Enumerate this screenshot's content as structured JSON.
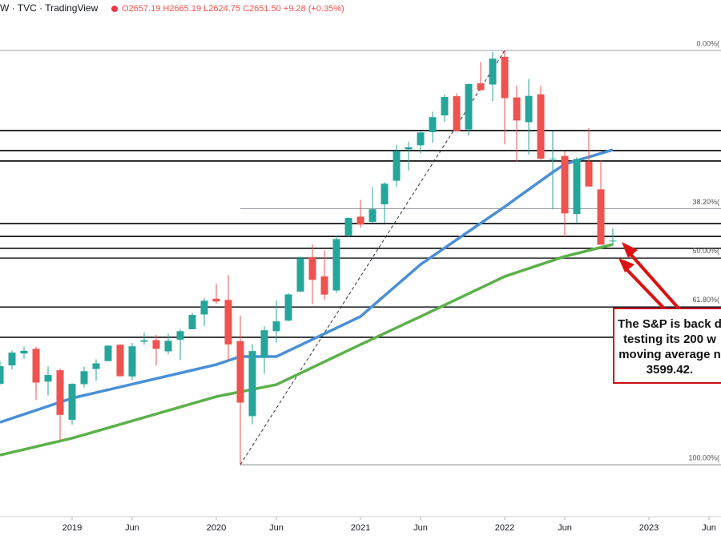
{
  "chart_data": {
    "type": "candlestick",
    "header": {
      "symbol": "W · TVC · TradingView",
      "ohlc": "O2657.19 H2665.19 L2624.75 C2651.50 +9.28 (+0.35%)"
    },
    "x": [
      "2018-07",
      "2018-08",
      "2018-09",
      "2018-10",
      "2018-11",
      "2018-12",
      "2019-01",
      "2019-02",
      "2019-03",
      "2019-04",
      "2019-05",
      "2019-06",
      "2019-07",
      "2019-08",
      "2019-09",
      "2019-10",
      "2019-11",
      "2019-12",
      "2020-01",
      "2020-02",
      "2020-03",
      "2020-04",
      "2020-05",
      "2020-06",
      "2020-07",
      "2020-08",
      "2020-09",
      "2020-10",
      "2020-11",
      "2020-12",
      "2021-01",
      "2021-02",
      "2021-03",
      "2021-04",
      "2021-05",
      "2021-06",
      "2021-07",
      "2021-08",
      "2021-09",
      "2021-10",
      "2021-11",
      "2021-12",
      "2022-01",
      "2022-02",
      "2022-03",
      "2022-04",
      "2022-05",
      "2022-06",
      "2022-07",
      "2022-08",
      "2022-09",
      "2022-10"
    ],
    "open": [
      2704,
      2821,
      2896,
      2926,
      2718,
      2790,
      2476,
      2702,
      2798,
      2848,
      2952,
      2751,
      2971,
      2981,
      2910,
      2984,
      3050,
      3144,
      3244,
      3236,
      2975,
      2499,
      2869,
      3038,
      3105,
      3289,
      3508,
      3385,
      3296,
      3645,
      3764,
      3731,
      3842,
      3992,
      4191,
      4217,
      4300,
      4406,
      4528,
      4317,
      4610,
      4602,
      4778,
      4520,
      4363,
      4540,
      4130,
      4149,
      3781,
      4113,
      3937,
      3609
    ],
    "high": [
      2848,
      2916,
      2941,
      2940,
      2815,
      2800,
      2708,
      2813,
      2860,
      2949,
      2954,
      2964,
      3028,
      3014,
      3022,
      3050,
      3154,
      3248,
      3338,
      3394,
      3137,
      2955,
      3068,
      3233,
      3280,
      3514,
      3588,
      3550,
      3646,
      3760,
      3871,
      3951,
      3983,
      4218,
      4238,
      4302,
      4430,
      4538,
      4546,
      4608,
      4744,
      4808,
      4819,
      4595,
      4637,
      4593,
      4308,
      4178,
      4140,
      4325,
      4119,
      3690
    ],
    "low": [
      2698,
      2796,
      2864,
      2603,
      2631,
      2347,
      2444,
      2681,
      2723,
      2848,
      2751,
      2729,
      2952,
      2822,
      2891,
      2855,
      3050,
      3070,
      3214,
      2855,
      2192,
      2448,
      2767,
      2966,
      3101,
      3285,
      3209,
      3234,
      3279,
      3633,
      3694,
      3725,
      3723,
      3955,
      4057,
      4165,
      4233,
      4367,
      4306,
      4279,
      4560,
      4495,
      4223,
      4115,
      4157,
      4124,
      3811,
      3637,
      3721,
      3955,
      3585,
      3584
    ],
    "close": [
      2816,
      2902,
      2914,
      2712,
      2760,
      2507,
      2704,
      2784,
      2834,
      2946,
      2752,
      2942,
      2980,
      2926,
      2977,
      3038,
      3141,
      3231,
      3226,
      2954,
      2585,
      2912,
      3044,
      3100,
      3271,
      3500,
      3363,
      3270,
      3622,
      3756,
      3714,
      3811,
      3973,
      4181,
      4204,
      4298,
      4395,
      4523,
      4308,
      4605,
      4567,
      4766,
      4516,
      4374,
      4530,
      4132,
      4132,
      3785,
      4130,
      3955,
      3586,
      3612
    ],
    "up_color": "#26a69a",
    "down_color": "#ef5350",
    "series": [
      {
        "color": "#4a8fd6",
        "x": [
          "2018-07",
          "2019-01",
          "2020-01",
          "2020-03",
          "2020-06",
          "2021-01",
          "2021-06",
          "2022-01",
          "2022-05",
          "2022-06",
          "2022-10"
        ],
        "values": [
          2460,
          2613,
          2826,
          2877,
          2877,
          3131,
          3461,
          3827,
          4046,
          4097,
          4188
        ]
      },
      {
        "color": "#5cb04a",
        "x": [
          "2018-07",
          "2019-01",
          "2020-01",
          "2020-06",
          "2021-01",
          "2021-06",
          "2022-01",
          "2022-06",
          "2022-10"
        ],
        "values": [
          2252,
          2359,
          2623,
          2699,
          2953,
          3131,
          3385,
          3512,
          3588
        ]
      }
    ],
    "levels": [
      4310,
      4183,
      4117,
      3720,
      3639,
      3563,
      3502,
      3192,
      2999
    ],
    "fib_levels": [
      {
        "value": 4818,
        "label": "0.00%("
      },
      {
        "value": 3815,
        "label": "38.20%(",
        "from": "2020-03"
      },
      {
        "value": 3504,
        "label": "50.00%("
      },
      {
        "value": 3194,
        "label": "61.80%("
      },
      {
        "value": 2191,
        "label": "100.00%(",
        "from": "2020-03"
      }
    ],
    "trendline": {
      "x": [
        "2020-03",
        "2022-01"
      ],
      "values": [
        2191,
        4818
      ]
    },
    "annotation": {
      "lines": [
        "The S&P is back d",
        "testing its 200 w",
        "moving average n",
        "3599.42."
      ],
      "color": "#cc1111"
    },
    "xlim": [
      "2018-07",
      "2023-07"
    ],
    "ylim": [
      1861,
      5138
    ],
    "xticks": [
      {
        "value": "2019-01",
        "label": "2019"
      },
      {
        "value": "2019-06",
        "label": "Jun"
      },
      {
        "value": "2020-01",
        "label": "2020"
      },
      {
        "value": "2020-06",
        "label": "Jun"
      },
      {
        "value": "2021-01",
        "label": "2021"
      },
      {
        "value": "2021-06",
        "label": "Jun"
      },
      {
        "value": "2022-01",
        "label": "2022"
      },
      {
        "value": "2022-06",
        "label": "Jun"
      },
      {
        "value": "2023-01",
        "label": "2023"
      },
      {
        "value": "2023-06",
        "label": "Jun"
      }
    ]
  }
}
